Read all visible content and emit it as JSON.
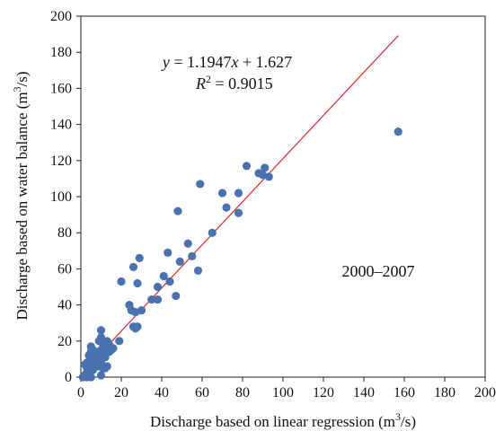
{
  "chart_data": {
    "type": "scatter",
    "xlabel_main": "Discharge based on linear regression (m",
    "xlabel_sup": "3",
    "xlabel_end": "/s)",
    "ylabel_main": "Discharge based on water balance (m",
    "ylabel_sup": "3",
    "ylabel_end": "/s)",
    "xlim": [
      0,
      200
    ],
    "ylim": [
      0,
      200
    ],
    "x_ticks": [
      0,
      20,
      40,
      60,
      80,
      100,
      120,
      140,
      160,
      180,
      200
    ],
    "y_ticks": [
      0,
      20,
      40,
      60,
      80,
      100,
      120,
      140,
      160,
      180,
      200
    ],
    "grid": false,
    "point_color": "#4a72b0",
    "line_color": "#e0262b",
    "equation_text": "y = 1.1947x + 1.627",
    "r2_label": "R",
    "r2_sup": "2",
    "r2_value": " = 0.9015",
    "period_label": "2000–2007",
    "fit": {
      "slope": 1.1947,
      "intercept": 1.627,
      "x_start": 0,
      "x_end": 157
    },
    "points": [
      [
        157,
        136
      ],
      [
        82,
        117
      ],
      [
        88,
        113
      ],
      [
        90,
        112
      ],
      [
        91,
        116
      ],
      [
        93,
        111
      ],
      [
        70,
        102
      ],
      [
        78,
        102
      ],
      [
        59,
        107
      ],
      [
        48,
        92
      ],
      [
        72,
        94
      ],
      [
        78,
        91
      ],
      [
        65,
        80
      ],
      [
        53,
        74
      ],
      [
        49,
        64
      ],
      [
        55,
        67
      ],
      [
        43,
        69
      ],
      [
        58,
        59
      ],
      [
        29,
        66
      ],
      [
        26,
        61
      ],
      [
        28,
        52
      ],
      [
        20,
        53
      ],
      [
        44,
        53
      ],
      [
        41,
        56
      ],
      [
        38,
        50
      ],
      [
        47,
        45
      ],
      [
        35,
        43
      ],
      [
        38,
        43
      ],
      [
        24,
        40
      ],
      [
        25,
        37
      ],
      [
        27,
        36
      ],
      [
        30,
        37
      ],
      [
        26,
        28
      ],
      [
        28,
        28
      ],
      [
        27,
        27
      ],
      [
        19,
        20
      ],
      [
        15,
        15
      ],
      [
        14,
        18
      ],
      [
        13,
        20
      ],
      [
        14,
        14
      ],
      [
        16,
        16
      ],
      [
        10,
        26
      ],
      [
        10,
        22
      ],
      [
        9,
        20
      ],
      [
        11,
        18
      ],
      [
        12,
        16
      ],
      [
        10,
        15
      ],
      [
        9,
        13
      ],
      [
        8,
        12
      ],
      [
        7,
        11
      ],
      [
        6,
        10
      ],
      [
        5,
        9
      ],
      [
        4,
        8
      ],
      [
        3,
        8
      ],
      [
        2,
        7
      ],
      [
        3,
        5
      ],
      [
        4,
        12
      ],
      [
        5,
        14
      ],
      [
        6,
        15
      ],
      [
        5,
        17
      ],
      [
        7,
        13
      ],
      [
        8,
        14
      ],
      [
        9,
        12
      ],
      [
        10,
        10
      ],
      [
        11,
        13
      ],
      [
        12,
        11
      ],
      [
        10,
        8
      ],
      [
        9,
        6
      ],
      [
        8,
        9
      ],
      [
        7,
        7
      ],
      [
        6,
        6
      ],
      [
        5,
        5
      ],
      [
        4,
        3
      ],
      [
        3,
        2
      ],
      [
        2,
        1
      ],
      [
        1,
        0
      ],
      [
        3,
        0
      ],
      [
        5,
        0
      ],
      [
        10,
        1
      ],
      [
        12,
        5
      ],
      [
        11,
        5
      ],
      [
        13,
        6
      ],
      [
        6,
        4
      ],
      [
        7,
        10
      ]
    ]
  }
}
